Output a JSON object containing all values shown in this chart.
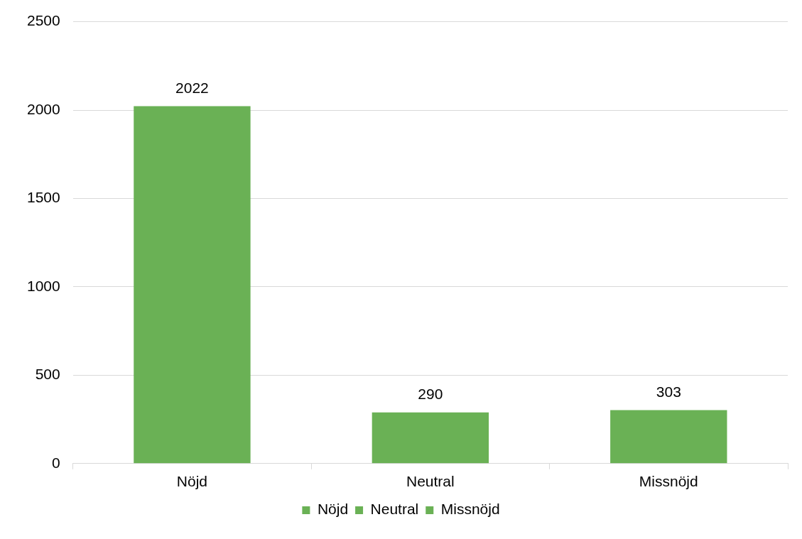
{
  "chart_data": {
    "type": "bar",
    "categories": [
      "Nöjd",
      "Neutral",
      "Missnöjd"
    ],
    "series": [
      {
        "name": "Nöjd",
        "color": "#6ab155",
        "values": [
          2022,
          null,
          null
        ]
      },
      {
        "name": "Neutral",
        "color": "#6ab155",
        "values": [
          null,
          290,
          null
        ]
      },
      {
        "name": "Missnöjd",
        "color": "#6ab155",
        "values": [
          null,
          null,
          303
        ]
      }
    ],
    "stacked": true,
    "ylim": [
      0,
      2500
    ],
    "yticks": [
      0,
      500,
      1000,
      1500,
      2000,
      2500
    ],
    "grid": "y",
    "legend": "bottom",
    "data_labels": true
  }
}
